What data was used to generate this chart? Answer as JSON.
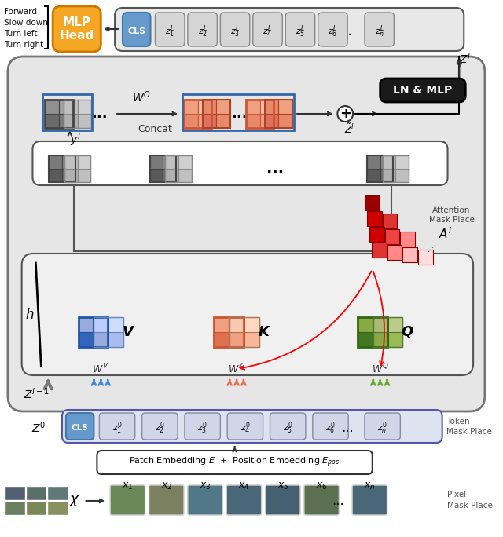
{
  "bg_color": "#ffffff",
  "orange": "#f5a623",
  "blue_cls": "#6699cc",
  "dark_blue": "#3366aa",
  "black": "#111111",
  "action_labels": [
    "Forward",
    "Slow down",
    "Turn left",
    "Turn right"
  ]
}
